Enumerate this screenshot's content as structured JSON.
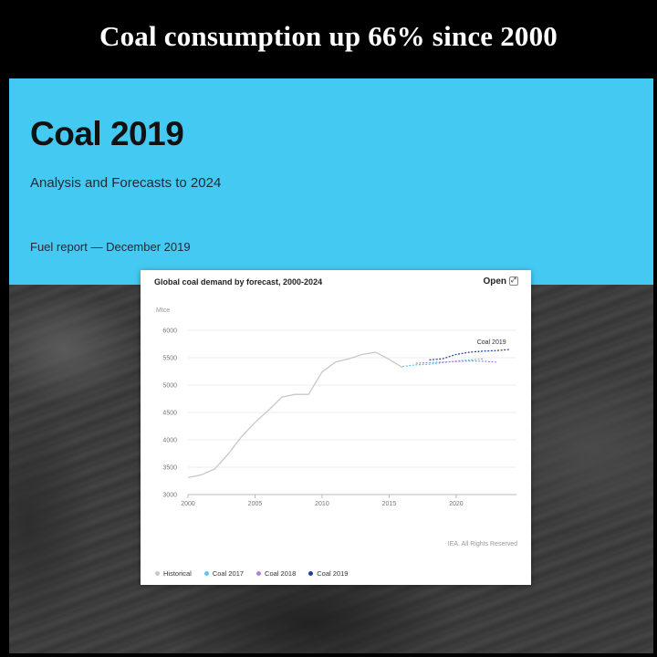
{
  "headline": "Coal consumption up 66% since 2000",
  "report": {
    "title": "Coal 2019",
    "subtitle": "Analysis and Forecasts to 2024",
    "meta": "Fuel report — December 2019"
  },
  "card": {
    "open_label": "Open",
    "open_icon": "expand-icon",
    "rights": "IEA. All Rights Reserved"
  },
  "colors": {
    "banner": "#44c9f2",
    "historical": "#c8c8c8",
    "coal2017": "#5fc6ee",
    "coal2018": "#a983e0",
    "coal2019": "#1f3f9e"
  },
  "chart_data": {
    "type": "line",
    "title": "Global coal demand by forecast, 2000-2024",
    "ylabel": "Mtce",
    "xlabel": "",
    "xlim": [
      2000,
      2024.5
    ],
    "ylim": [
      3000,
      6000
    ],
    "xticks": [
      2000,
      2005,
      2010,
      2015,
      2020
    ],
    "yticks": [
      3000,
      3500,
      4000,
      4500,
      5000,
      5500,
      6000
    ],
    "grid": true,
    "legend_position": "bottom",
    "annotation": "Coal 2019",
    "series": [
      {
        "name": "Historical",
        "dash": "solid",
        "x": [
          2000,
          2001,
          2002,
          2003,
          2004,
          2005,
          2006,
          2007,
          2008,
          2009,
          2010,
          2011,
          2012,
          2013,
          2014,
          2015,
          2016
        ],
        "y": [
          3310,
          3360,
          3470,
          3740,
          4060,
          4320,
          4540,
          4780,
          4830,
          4830,
          5240,
          5420,
          5480,
          5560,
          5600,
          5470,
          5320
        ]
      },
      {
        "name": "Coal 2017",
        "dash": "dotted",
        "x": [
          2016,
          2017,
          2018,
          2019,
          2020,
          2021,
          2022
        ],
        "y": [
          5340,
          5370,
          5380,
          5410,
          5440,
          5460,
          5480
        ]
      },
      {
        "name": "Coal 2018",
        "dash": "dotted",
        "x": [
          2017,
          2018,
          2019,
          2020,
          2021,
          2022,
          2023
        ],
        "y": [
          5400,
          5410,
          5420,
          5430,
          5440,
          5435,
          5420
        ]
      },
      {
        "name": "Coal 2019",
        "dash": "dotted",
        "x": [
          2018,
          2019,
          2020,
          2021,
          2022,
          2023,
          2024
        ],
        "y": [
          5460,
          5480,
          5560,
          5600,
          5620,
          5630,
          5650
        ]
      }
    ]
  }
}
